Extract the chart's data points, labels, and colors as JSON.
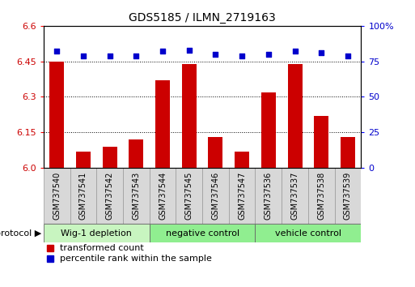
{
  "title": "GDS5185 / ILMN_2719163",
  "samples": [
    "GSM737540",
    "GSM737541",
    "GSM737542",
    "GSM737543",
    "GSM737544",
    "GSM737545",
    "GSM737546",
    "GSM737547",
    "GSM737536",
    "GSM737537",
    "GSM737538",
    "GSM737539"
  ],
  "red_values": [
    6.45,
    6.07,
    6.09,
    6.12,
    6.37,
    6.44,
    6.13,
    6.07,
    6.32,
    6.44,
    6.22,
    6.13
  ],
  "blue_values": [
    82,
    79,
    79,
    79,
    82,
    83,
    80,
    79,
    80,
    82,
    81,
    79
  ],
  "groups": [
    {
      "label": "Wig-1 depletion",
      "start": 0,
      "end": 4,
      "color": "#c8f5c0"
    },
    {
      "label": "negative control",
      "start": 4,
      "end": 8,
      "color": "#90ee90"
    },
    {
      "label": "vehicle control",
      "start": 8,
      "end": 12,
      "color": "#90ee90"
    }
  ],
  "ylim_left": [
    6.0,
    6.6
  ],
  "ylim_right": [
    0,
    100
  ],
  "yticks_left": [
    6.0,
    6.15,
    6.3,
    6.45,
    6.6
  ],
  "yticks_right": [
    0,
    25,
    50,
    75,
    100
  ],
  "bar_color": "#cc0000",
  "dot_color": "#0000cc",
  "bar_width": 0.55,
  "tick_label_bg": "#d8d8d8",
  "tick_label_border": "#999999",
  "group_border": "#666666",
  "protocol_label": "protocol",
  "legend_red_label": "transformed count",
  "legend_blue_label": "percentile rank within the sample"
}
